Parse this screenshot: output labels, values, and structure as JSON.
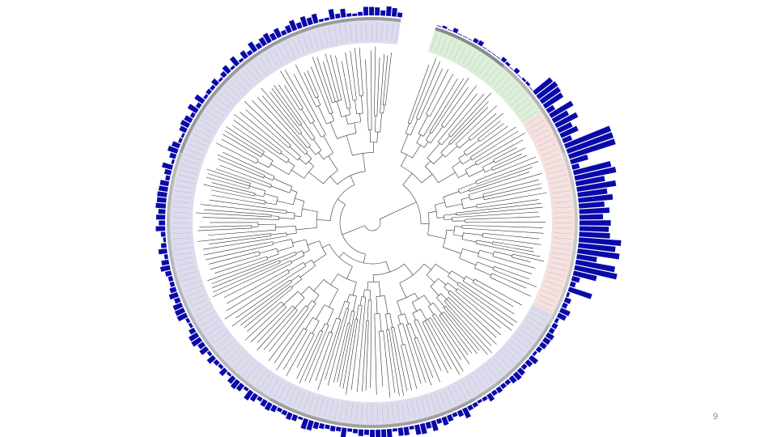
{
  "slide": {
    "page_number": "9"
  },
  "colors": {
    "background": "#ffffff",
    "clade_primary_band": "#dcdcee",
    "clade_green_band": "#dcefd8",
    "clade_red_band": "#f5e1df",
    "annotation_ring": "#9a9a9a",
    "branch_line": "#333333",
    "leaf_label": "#aaaaaa",
    "bar_fill": "#0a0aaa"
  },
  "figure": {
    "type": "circular-phylogenetic-tree",
    "clades": [
      {
        "name": "",
        "color": "green"
      },
      {
        "name": "",
        "color": "red"
      },
      {
        "name": "",
        "color": "lavender"
      }
    ],
    "has_outer_bar_track": true,
    "has_gap_between_clades": true
  }
}
